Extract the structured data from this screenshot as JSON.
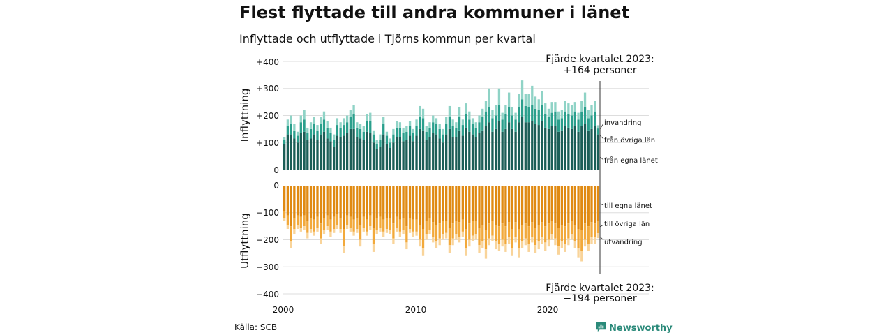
{
  "header": {
    "title": "Flest flyttade till andra kommuner i länet",
    "subtitle": "Inflyttade och utflyttade i Tjörns kommun per kvartal"
  },
  "footer": {
    "source": "Källa: SCB",
    "brand": "Newsworthy"
  },
  "colors": {
    "in_dark": "#1b5e57",
    "in_mid": "#2a9f8c",
    "in_light": "#8fd3c6",
    "out_dark": "#e08a12",
    "out_mid": "#f2a93b",
    "out_light": "#f9d49a",
    "grid": "#dddddd",
    "brand": "#2b8a7a"
  },
  "chart_data": {
    "type": "bar",
    "stacked": true,
    "quarters_start": "2000 Q1",
    "quarters_end": "2023 Q4",
    "x_ticks": [
      "2000",
      "2010",
      "2020"
    ],
    "upper": {
      "ylabel": "Inflyttning",
      "ylim": [
        0,
        400
      ],
      "y_ticks": [
        "+400",
        "+300",
        "+200",
        "+100",
        "0"
      ],
      "series_labels": [
        "invandring",
        "från övriga län",
        "från egna länet"
      ],
      "annotation": [
        "Fjärde kvartalet 2023:",
        "+164 personer"
      ],
      "total": [
        120,
        185,
        200,
        170,
        140,
        200,
        220,
        155,
        175,
        195,
        165,
        195,
        215,
        180,
        155,
        130,
        190,
        175,
        190,
        200,
        220,
        240,
        175,
        170,
        160,
        205,
        210,
        145,
        110,
        130,
        195,
        140,
        115,
        150,
        180,
        175,
        155,
        160,
        180,
        150,
        185,
        235,
        225,
        160,
        175,
        200,
        190,
        170,
        150,
        195,
        235,
        185,
        175,
        230,
        185,
        245,
        215,
        190,
        175,
        200,
        225,
        255,
        300,
        220,
        240,
        300,
        210,
        240,
        285,
        230,
        210,
        280,
        330,
        280,
        280,
        310,
        270,
        260,
        290,
        245,
        225,
        250,
        250,
        215,
        220,
        255,
        245,
        240,
        250,
        210,
        255,
        285,
        220,
        240,
        255,
        164
      ],
      "from_own_county": [
        95,
        130,
        130,
        115,
        100,
        135,
        140,
        110,
        115,
        130,
        110,
        130,
        140,
        115,
        105,
        85,
        125,
        120,
        125,
        135,
        150,
        150,
        120,
        115,
        110,
        140,
        135,
        100,
        75,
        85,
        130,
        95,
        80,
        100,
        120,
        120,
        105,
        110,
        125,
        105,
        125,
        150,
        145,
        110,
        120,
        135,
        130,
        115,
        100,
        130,
        150,
        120,
        120,
        145,
        125,
        155,
        140,
        130,
        120,
        135,
        145,
        160,
        175,
        140,
        150,
        180,
        140,
        150,
        175,
        150,
        140,
        175,
        195,
        175,
        175,
        180,
        170,
        165,
        180,
        155,
        150,
        160,
        160,
        140,
        145,
        160,
        155,
        150,
        160,
        140,
        160,
        170,
        145,
        150,
        160,
        130
      ],
      "from_other_counties": [
        15,
        30,
        40,
        30,
        25,
        40,
        45,
        25,
        35,
        40,
        35,
        40,
        45,
        40,
        30,
        25,
        40,
        35,
        40,
        40,
        45,
        55,
        35,
        35,
        30,
        40,
        45,
        30,
        20,
        25,
        40,
        30,
        20,
        30,
        35,
        35,
        30,
        30,
        35,
        30,
        35,
        45,
        45,
        30,
        35,
        40,
        40,
        35,
        30,
        40,
        45,
        40,
        35,
        50,
        40,
        50,
        45,
        40,
        35,
        40,
        50,
        55,
        55,
        50,
        50,
        60,
        45,
        55,
        55,
        50,
        45,
        55,
        65,
        60,
        55,
        60,
        55,
        55,
        60,
        50,
        45,
        50,
        55,
        45,
        45,
        55,
        50,
        50,
        55,
        45,
        55,
        60,
        45,
        50,
        55,
        22
      ],
      "immigration": [
        10,
        25,
        30,
        25,
        15,
        25,
        35,
        20,
        25,
        25,
        20,
        25,
        30,
        25,
        20,
        20,
        25,
        20,
        25,
        25,
        25,
        35,
        20,
        20,
        20,
        25,
        30,
        15,
        15,
        20,
        25,
        15,
        15,
        20,
        25,
        20,
        20,
        20,
        20,
        15,
        25,
        40,
        35,
        20,
        20,
        25,
        20,
        20,
        20,
        25,
        40,
        25,
        20,
        35,
        20,
        40,
        30,
        20,
        20,
        25,
        30,
        40,
        70,
        30,
        40,
        60,
        25,
        35,
        55,
        30,
        25,
        50,
        70,
        45,
        50,
        70,
        45,
        40,
        50,
        40,
        30,
        40,
        35,
        30,
        30,
        40,
        40,
        40,
        35,
        25,
        40,
        55,
        30,
        40,
        40,
        12
      ]
    },
    "lower": {
      "ylabel": "Utflyttning",
      "ylim": [
        -400,
        0
      ],
      "y_ticks": [
        "0",
        "−100",
        "−200",
        "−300",
        "−400"
      ],
      "series_labels": [
        "till egna länet",
        "till övriga län",
        "utvandring"
      ],
      "annotation": [
        "Fjärde kvartalet 2023:",
        "−194 personer"
      ],
      "total": [
        130,
        160,
        230,
        180,
        160,
        170,
        165,
        195,
        175,
        185,
        170,
        215,
        180,
        165,
        190,
        175,
        160,
        175,
        250,
        160,
        170,
        185,
        175,
        225,
        170,
        185,
        165,
        245,
        180,
        170,
        190,
        175,
        180,
        215,
        170,
        190,
        180,
        235,
        175,
        190,
        185,
        225,
        260,
        200,
        180,
        210,
        230,
        220,
        200,
        195,
        250,
        220,
        200,
        210,
        190,
        260,
        225,
        205,
        200,
        250,
        230,
        270,
        220,
        205,
        235,
        240,
        225,
        245,
        215,
        260,
        210,
        265,
        230,
        220,
        245,
        210,
        250,
        235,
        215,
        240,
        225,
        200,
        220,
        255,
        230,
        245,
        220,
        200,
        230,
        265,
        280,
        225,
        240,
        215,
        215,
        194
      ],
      "to_own_county": [
        95,
        110,
        150,
        120,
        110,
        115,
        110,
        130,
        120,
        125,
        115,
        140,
        120,
        110,
        125,
        115,
        105,
        120,
        160,
        110,
        115,
        125,
        120,
        145,
        115,
        125,
        110,
        155,
        120,
        115,
        125,
        120,
        120,
        140,
        115,
        125,
        120,
        150,
        120,
        125,
        125,
        145,
        160,
        130,
        120,
        135,
        145,
        140,
        130,
        130,
        155,
        140,
        130,
        135,
        125,
        160,
        140,
        130,
        130,
        155,
        145,
        165,
        140,
        130,
        145,
        150,
        140,
        150,
        135,
        160,
        135,
        160,
        145,
        140,
        150,
        135,
        155,
        145,
        135,
        150,
        140,
        130,
        140,
        155,
        145,
        150,
        140,
        130,
        145,
        160,
        165,
        140,
        150,
        135,
        140,
        130
      ],
      "to_other_counties": [
        25,
        35,
        55,
        40,
        35,
        40,
        40,
        45,
        40,
        45,
        40,
        55,
        45,
        40,
        45,
        45,
        40,
        40,
        65,
        35,
        40,
        45,
        40,
        55,
        40,
        45,
        40,
        60,
        45,
        40,
        45,
        40,
        45,
        55,
        40,
        45,
        45,
        60,
        40,
        45,
        45,
        55,
        70,
        50,
        45,
        55,
        60,
        55,
        50,
        45,
        65,
        55,
        50,
        55,
        45,
        70,
        60,
        55,
        50,
        65,
        60,
        70,
        55,
        55,
        60,
        65,
        60,
        65,
        55,
        70,
        55,
        70,
        60,
        55,
        65,
        55,
        65,
        60,
        55,
        60,
        60,
        50,
        55,
        70,
        60,
        65,
        55,
        50,
        60,
        70,
        75,
        60,
        65,
        55,
        50,
        46
      ],
      "emigration": [
        10,
        15,
        25,
        20,
        15,
        15,
        15,
        20,
        15,
        15,
        15,
        20,
        15,
        15,
        20,
        15,
        15,
        15,
        25,
        15,
        15,
        15,
        15,
        25,
        15,
        15,
        15,
        30,
        15,
        15,
        20,
        15,
        15,
        20,
        15,
        20,
        15,
        25,
        15,
        20,
        15,
        25,
        30,
        20,
        15,
        20,
        25,
        25,
        20,
        20,
        30,
        25,
        20,
        20,
        20,
        30,
        25,
        20,
        20,
        30,
        25,
        35,
        25,
        20,
        30,
        25,
        25,
        30,
        25,
        30,
        20,
        35,
        25,
        25,
        30,
        20,
        30,
        30,
        25,
        30,
        25,
        20,
        25,
        30,
        25,
        30,
        25,
        20,
        25,
        35,
        40,
        25,
        25,
        25,
        25,
        18
      ]
    }
  }
}
